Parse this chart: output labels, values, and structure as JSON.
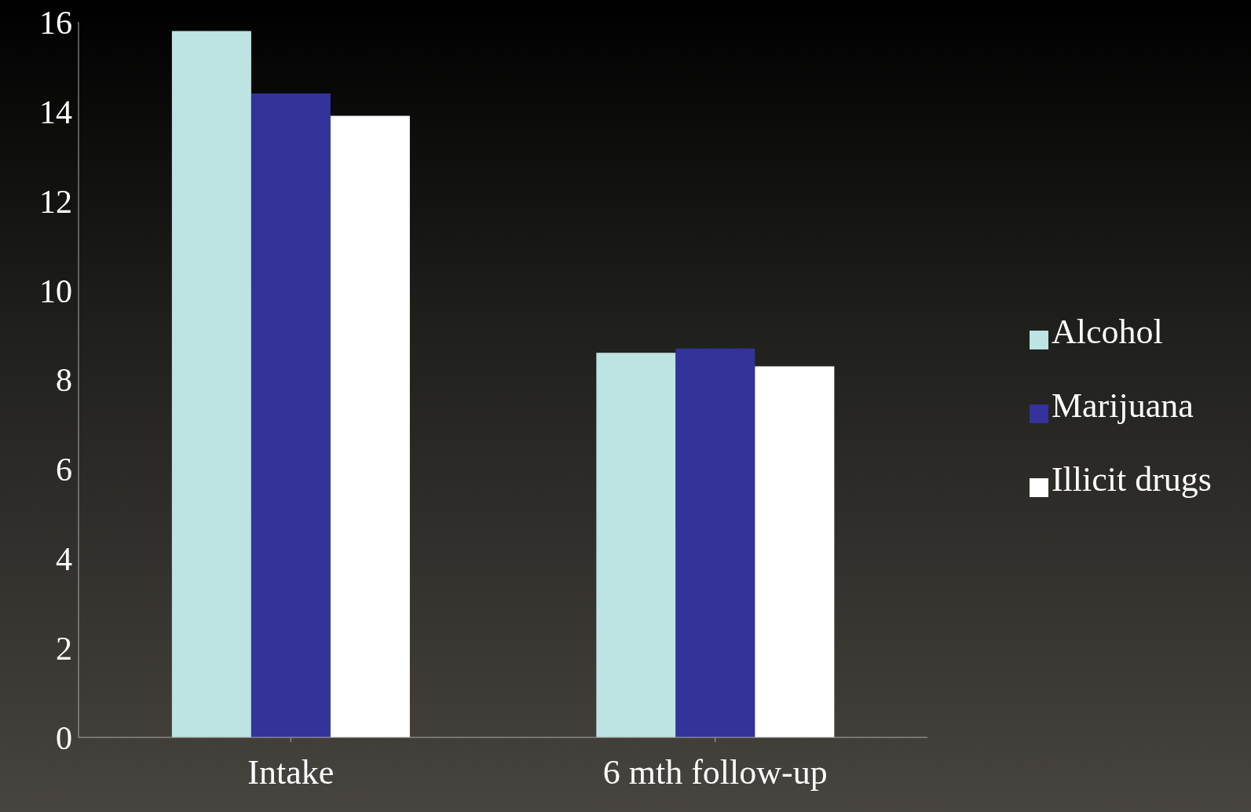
{
  "chart_data": {
    "type": "bar",
    "categories": [
      "Intake",
      "6 mth follow-up"
    ],
    "series": [
      {
        "name": "Alcohol",
        "color": "#bde3e3",
        "values": [
          15.8,
          8.6
        ]
      },
      {
        "name": "Marijuana",
        "color": "#333399",
        "values": [
          14.4,
          8.7
        ]
      },
      {
        "name": "Illicit drugs",
        "color": "#ffffff",
        "values": [
          13.9,
          8.3
        ]
      }
    ],
    "ylim": [
      0,
      16
    ],
    "yticks": [
      0,
      2,
      4,
      6,
      8,
      10,
      12,
      14,
      16
    ],
    "grid": false,
    "legend": "right"
  }
}
